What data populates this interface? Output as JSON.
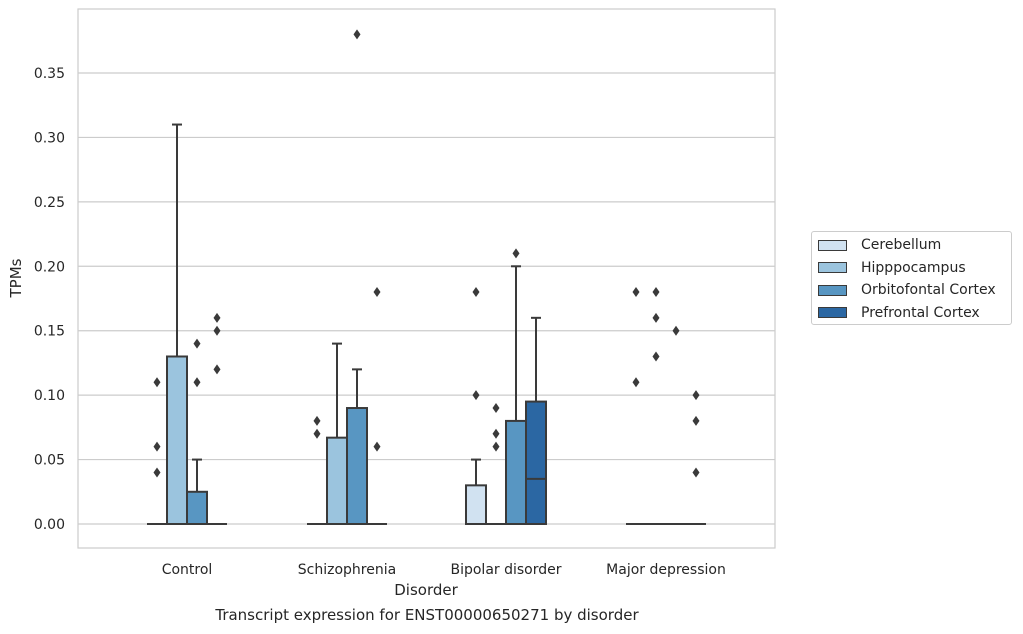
{
  "chart_data": {
    "type": "box",
    "xlabel": "Disorder",
    "ylabel": "TPMs",
    "ylim": [
      -0.018,
      0.39
    ],
    "yticks": [
      "0.00",
      "0.05",
      "0.10",
      "0.15",
      "0.20",
      "0.25",
      "0.30",
      "0.35"
    ],
    "categories": [
      "Control",
      "Schizophrenia",
      "Bipolar disorder",
      "Major depression"
    ],
    "grid": true,
    "legend_position": "right",
    "series": [
      {
        "name": "Cerebellum",
        "color": "#d1e2f1",
        "boxes": [
          {
            "q1": 0,
            "median": 0,
            "q3": 0,
            "whisker_low": 0,
            "whisker_high": 0,
            "outliers": [
              0.04,
              0.06,
              0.11
            ]
          },
          {
            "q1": 0,
            "median": 0,
            "q3": 0,
            "whisker_low": 0,
            "whisker_high": 0,
            "outliers": [
              0.07,
              0.08
            ]
          },
          {
            "q1": 0,
            "median": 0,
            "q3": 0.03,
            "whisker_low": 0,
            "whisker_high": 0.05,
            "outliers": [
              0.1,
              0.18
            ]
          },
          {
            "q1": 0,
            "median": 0,
            "q3": 0,
            "whisker_low": 0,
            "whisker_high": 0,
            "outliers": [
              0.11,
              0.18
            ]
          }
        ]
      },
      {
        "name": "Hipppocampus",
        "color": "#9bc4de",
        "boxes": [
          {
            "q1": 0,
            "median": 0,
            "q3": 0.13,
            "whisker_low": 0,
            "whisker_high": 0.31,
            "outliers": []
          },
          {
            "q1": 0,
            "median": 0,
            "q3": 0.067,
            "whisker_low": 0,
            "whisker_high": 0.14,
            "outliers": []
          },
          {
            "q1": 0,
            "median": 0,
            "q3": 0,
            "whisker_low": 0,
            "whisker_high": 0,
            "outliers": [
              0.06,
              0.07,
              0.09
            ]
          },
          {
            "q1": 0,
            "median": 0,
            "q3": 0,
            "whisker_low": 0,
            "whisker_high": 0,
            "outliers": [
              0.13,
              0.16,
              0.18
            ]
          }
        ]
      },
      {
        "name": "Orbitofontal Cortex",
        "color": "#5896c2",
        "boxes": [
          {
            "q1": 0,
            "median": 0,
            "q3": 0.025,
            "whisker_low": 0,
            "whisker_high": 0.05,
            "outliers": [
              0.11,
              0.14
            ]
          },
          {
            "q1": 0,
            "median": 0,
            "q3": 0.09,
            "whisker_low": 0,
            "whisker_high": 0.12,
            "outliers": [
              0.38
            ]
          },
          {
            "q1": 0,
            "median": 0,
            "q3": 0.08,
            "whisker_low": 0,
            "whisker_high": 0.2,
            "outliers": [
              0.21
            ]
          },
          {
            "q1": 0,
            "median": 0,
            "q3": 0,
            "whisker_low": 0,
            "whisker_high": 0,
            "outliers": [
              0.15
            ]
          }
        ]
      },
      {
        "name": "Prefrontal Cortex",
        "color": "#2b67a3",
        "boxes": [
          {
            "q1": 0,
            "median": 0,
            "q3": 0,
            "whisker_low": 0,
            "whisker_high": 0,
            "outliers": [
              0.12,
              0.15,
              0.16
            ]
          },
          {
            "q1": 0,
            "median": 0,
            "q3": 0,
            "whisker_low": 0,
            "whisker_high": 0,
            "outliers": [
              0.06,
              0.18
            ]
          },
          {
            "q1": 0,
            "median": 0.035,
            "q3": 0.095,
            "whisker_low": 0,
            "whisker_high": 0.16,
            "outliers": []
          },
          {
            "q1": 0,
            "median": 0,
            "q3": 0,
            "whisker_low": 0,
            "whisker_high": 0,
            "outliers": [
              0.04,
              0.08,
              0.1
            ]
          }
        ]
      }
    ]
  },
  "caption": "Transcript expression for ENST00000650271 by disorder"
}
